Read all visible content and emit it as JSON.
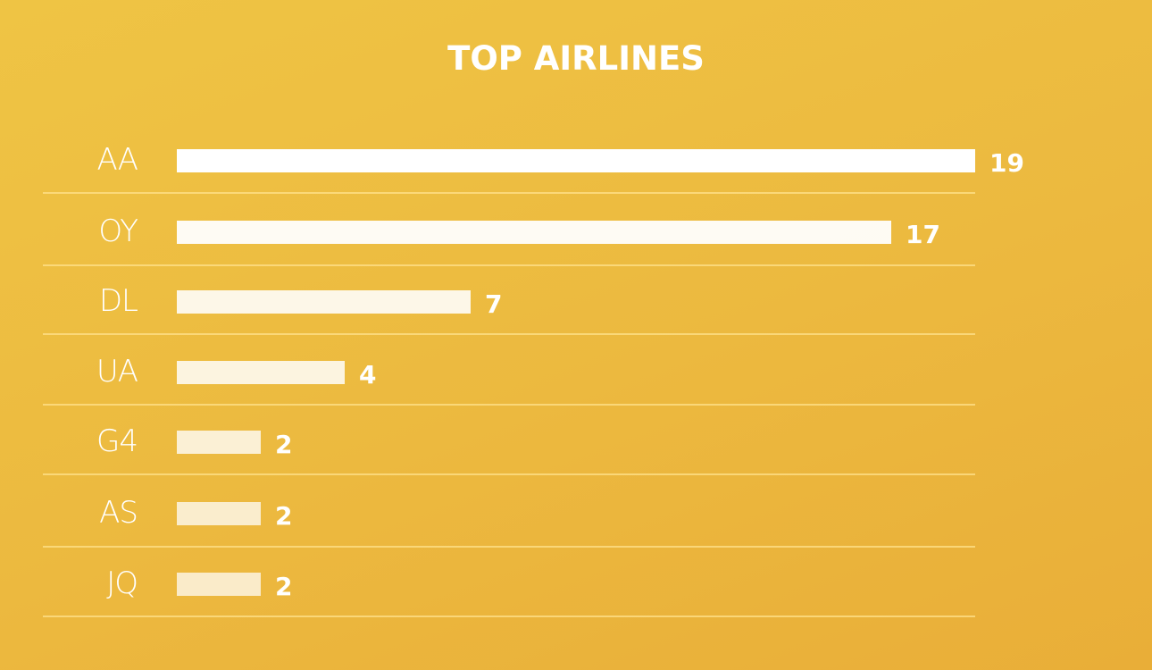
{
  "chart_data": {
    "type": "bar",
    "orientation": "horizontal",
    "title": "TOP AIRLINES",
    "categories": [
      "AA",
      "OY",
      "DL",
      "UA",
      "G4",
      "AS",
      "JQ"
    ],
    "values": [
      19,
      17,
      7,
      4,
      2,
      2,
      2
    ],
    "xlim": [
      0,
      19
    ],
    "grid": false,
    "legend": "none",
    "colors": {
      "bar": "#ffffff",
      "background_top": "#efc444",
      "background_bottom": "#e9ae38",
      "divider": "#f5d672"
    }
  }
}
